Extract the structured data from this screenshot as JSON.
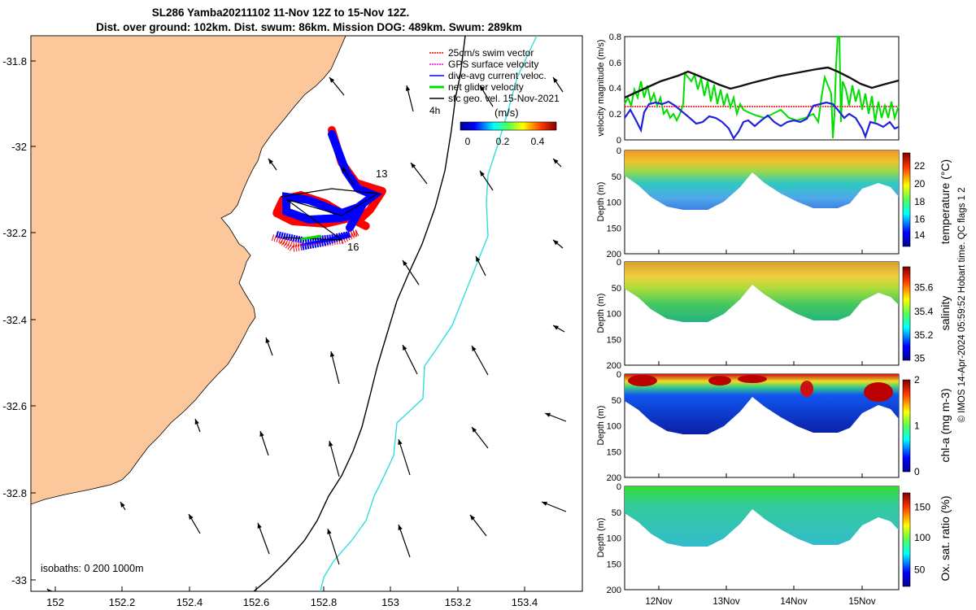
{
  "title": {
    "line1": "SL286 Yamba20211102 11-Nov 12Z to 15-Nov 12Z.",
    "line2": "Dist. over ground: 102km. Dist. swum: 86km. Mission DOG: 489km. Swum: 289km"
  },
  "map": {
    "lon_ticks": [
      "152",
      "152.2",
      "152.4",
      "152.6",
      "152.8",
      "153",
      "153.2",
      "153.4"
    ],
    "lat_ticks": [
      "-31.8",
      "-32",
      "-32.2",
      "-32.4",
      "-32.6",
      "-32.8",
      "-33"
    ],
    "legend": [
      {
        "label": "25cm/s swim vector",
        "color": "#ff0000"
      },
      {
        "label": "GPS surface velocity",
        "color": "#ff00ff"
      },
      {
        "label": "dive-avg current veloc.",
        "color": "#0000ff"
      },
      {
        "label": "net glider velocity",
        "color": "#00dd00"
      },
      {
        "label": "sfc geo. vel. 15-Nov-2021",
        "color": "#000000"
      }
    ],
    "scale_label": "4h",
    "colorbar_title": "(m/s)",
    "colorbar_ticks": [
      "0",
      "0.2",
      "0.4"
    ],
    "day_labels": [
      "13",
      "16"
    ],
    "isobaths_label": "isobaths: 0   200  1000m",
    "colors": {
      "land": "#fcc89b",
      "isobath_200": "#000000",
      "isobath_1000": "#33dddd",
      "track_blue": "#0000ff",
      "track_red": "#ff0000"
    }
  },
  "right": {
    "x_ticks": [
      "12Nov",
      "13Nov",
      "14Nov",
      "15Nov"
    ],
    "velocity": {
      "ylabel": "velocity magnitude (m/s)",
      "y_ticks": [
        "0",
        "0.2",
        "0.4",
        "0.6",
        "0.8"
      ]
    },
    "depth_label": "Depth (m)",
    "depth_ticks": [
      "0",
      "50",
      "100",
      "150",
      "200"
    ],
    "sections": [
      {
        "cbar_label": "temperature (°C)",
        "cbar_ticks": [
          "22",
          "20",
          "18",
          "16",
          "14"
        ]
      },
      {
        "cbar_label": "salinity",
        "cbar_ticks": [
          "35.6",
          "35.4",
          "35.2",
          "35"
        ]
      },
      {
        "cbar_label": "chl-a (mg m-3)",
        "cbar_ticks": [
          "2",
          "1",
          "0"
        ]
      },
      {
        "cbar_label": "Ox. sat. ratio (%)",
        "cbar_ticks": [
          "150",
          "100",
          "50"
        ]
      }
    ]
  },
  "footer": {
    "stamp": "© IMOS 14-Apr-2024 05:59:52 Hobart time. QC flags 1  2"
  }
}
